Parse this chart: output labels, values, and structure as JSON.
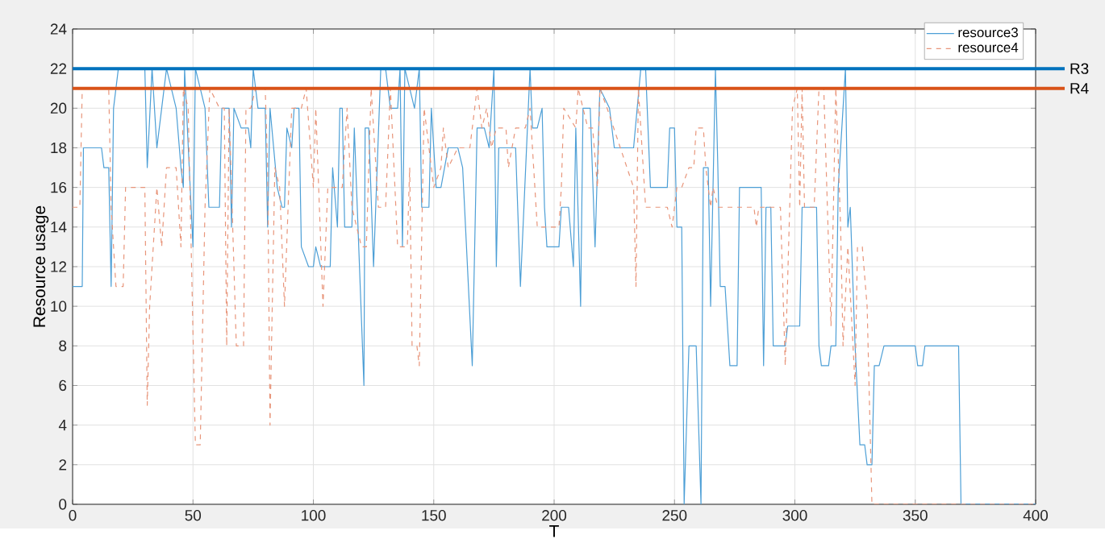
{
  "chart_data": {
    "type": "line",
    "xlabel": "T",
    "ylabel": "Resource usage",
    "xlim": [
      0,
      400
    ],
    "xticks": [
      0,
      50,
      100,
      150,
      200,
      250,
      300,
      350,
      400
    ],
    "ylim": [
      0,
      24
    ],
    "yticks": [
      0,
      2,
      4,
      6,
      8,
      10,
      12,
      14,
      16,
      18,
      20,
      22,
      24
    ],
    "grid": true,
    "legend": "top right",
    "series": [
      {
        "name": "resource3",
        "color": "#4d9fd6",
        "line_style": "solid",
        "x": [
          0,
          4,
          4.5,
          12,
          13,
          15,
          16,
          17,
          19,
          30,
          31,
          33,
          35,
          37,
          39,
          43,
          45,
          46,
          46.5,
          50,
          51,
          53,
          55,
          56.6,
          61,
          62,
          65,
          66,
          67,
          70,
          73,
          74,
          75,
          77,
          80,
          81,
          82,
          85,
          87,
          88,
          89,
          91,
          92,
          94,
          95,
          98,
          100,
          101,
          103,
          107,
          108,
          110,
          111,
          112,
          113,
          116,
          117,
          121,
          121.5,
          123,
          125,
          128,
          130,
          132,
          135,
          136,
          137,
          138,
          142,
          144,
          145,
          148,
          149,
          151,
          153,
          156,
          160,
          162,
          166,
          168,
          171,
          173,
          175,
          176,
          177,
          184,
          186,
          190,
          191,
          193,
          195,
          196,
          197,
          202,
          203,
          206,
          208,
          209,
          211,
          212,
          215,
          217,
          219,
          223,
          225,
          233,
          236,
          238,
          240,
          247,
          248,
          250,
          251,
          253,
          254,
          256,
          259,
          261,
          262,
          264,
          265,
          267,
          268,
          269,
          271,
          273,
          276,
          277,
          286,
          287,
          288,
          290,
          291,
          296,
          297,
          302,
          303,
          309,
          310,
          311,
          314,
          315,
          317,
          318,
          321,
          322,
          323,
          325,
          327,
          329,
          330,
          332,
          333,
          335,
          337,
          350,
          351,
          353,
          354,
          368,
          369,
          400
        ],
        "values": [
          11,
          11,
          18,
          18,
          17,
          17,
          11,
          20,
          22,
          22,
          17,
          22,
          18,
          20,
          22,
          20,
          17,
          16,
          22,
          13,
          22,
          21,
          20,
          15,
          15,
          20,
          20,
          14,
          20,
          19,
          19,
          18,
          22,
          20,
          20,
          14,
          20,
          16,
          15,
          15,
          19,
          18,
          20,
          20,
          13,
          12,
          12,
          13,
          12,
          12,
          17,
          14,
          20,
          20,
          14,
          14,
          19,
          6,
          19,
          19,
          12,
          22,
          22,
          20,
          20,
          22,
          13,
          22,
          20,
          22,
          15,
          15,
          20,
          16,
          16,
          18,
          18,
          17,
          7,
          19,
          19,
          18,
          22,
          12,
          18,
          18,
          11,
          22,
          19,
          19,
          20,
          15,
          13,
          13,
          15,
          15,
          12,
          19,
          10,
          20,
          20,
          13,
          21,
          20,
          18,
          18,
          22,
          22,
          16,
          16,
          19,
          19,
          14,
          14,
          0,
          8,
          8,
          0,
          17,
          17,
          10,
          22,
          17,
          11,
          11,
          7,
          7,
          16,
          16,
          7,
          15,
          15,
          8,
          8,
          9,
          9,
          15,
          15,
          8,
          7,
          7,
          8,
          8,
          16,
          22,
          14,
          15,
          8,
          3,
          3,
          2,
          2,
          7,
          7,
          8,
          8,
          7,
          7,
          8,
          8,
          0,
          0
        ]
      },
      {
        "name": "resource4",
        "color": "#e8957a",
        "line_style": "dashed",
        "x": [
          0,
          3,
          4,
          15,
          16,
          18,
          21,
          22,
          30,
          31,
          32,
          35,
          37,
          39,
          43,
          45,
          46,
          48,
          51,
          53,
          55,
          57,
          61,
          63,
          64,
          65,
          68,
          71,
          72,
          74,
          76,
          80,
          81,
          82,
          84,
          86,
          88,
          91,
          95,
          97,
          100,
          101,
          104,
          106,
          112,
          114,
          116,
          120,
          122,
          124,
          127,
          130,
          132,
          135,
          139,
          140,
          141,
          143,
          144,
          146,
          150,
          153,
          154,
          156,
          160,
          165,
          168,
          170,
          172,
          174,
          176,
          180,
          181,
          184,
          188,
          190,
          192,
          193,
          199,
          202,
          203,
          204,
          209,
          210,
          214,
          216,
          218,
          219,
          222,
          233,
          234,
          235,
          238,
          247,
          249,
          251,
          253,
          256,
          258,
          259,
          262,
          263,
          265,
          266,
          268,
          283,
          284,
          285,
          294,
          296,
          299,
          301,
          302,
          303,
          304,
          308,
          310,
          312,
          315,
          317,
          319,
          320,
          322,
          325,
          326,
          328,
          330,
          332,
          400
        ],
        "values": [
          15,
          15,
          21,
          21,
          15,
          11,
          11,
          16,
          16,
          5,
          10,
          16,
          13,
          17,
          17,
          13,
          21,
          20,
          3,
          3,
          15,
          21,
          20,
          20,
          8,
          20,
          8,
          8,
          20,
          20,
          21,
          21,
          17,
          4,
          17,
          16,
          10,
          20,
          20,
          21,
          16,
          20,
          10,
          16,
          16,
          20,
          15,
          13,
          13,
          21,
          15,
          15,
          21,
          13,
          13,
          17,
          8,
          8,
          7,
          20,
          16,
          17,
          19,
          17,
          18,
          18,
          21,
          19,
          20,
          18,
          19,
          19,
          17,
          19,
          19,
          20,
          16,
          14,
          14,
          14,
          16,
          20,
          19,
          21,
          19,
          19,
          16,
          21,
          20,
          16,
          11,
          21,
          15,
          15,
          14,
          16,
          16,
          17,
          17,
          19,
          19,
          17,
          15,
          16,
          15,
          15,
          14,
          15,
          15,
          7,
          20,
          21,
          15,
          21,
          15,
          15,
          21,
          21,
          9,
          21,
          14,
          8,
          13,
          6,
          13,
          13,
          10,
          0,
          0
        ]
      }
    ],
    "ref_lines": [
      {
        "axis": "y",
        "value": 22,
        "label": "R3",
        "color": "#0072bd",
        "line_style": "solid"
      },
      {
        "axis": "y",
        "value": 21,
        "label": "R4",
        "color": "#d95319",
        "line_style": "solid"
      }
    ]
  }
}
